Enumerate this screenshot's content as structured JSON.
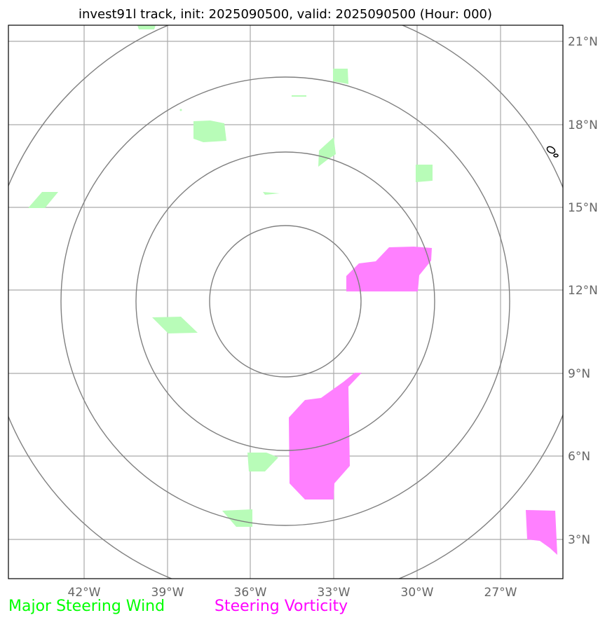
{
  "title": "invest91l track, init: 2025090500, valid: 2025090500 (Hour: 000)",
  "chart_data": {
    "type": "map",
    "title": "invest91l track, init: 2025090500, valid: 2025090500 (Hour: 000)",
    "lon_ticks": [
      "42°W",
      "39°W",
      "36°W",
      "33°W",
      "30°W",
      "27°W"
    ],
    "lat_ticks": [
      "21°N",
      "18°N",
      "15°N",
      "12°N",
      "9°N",
      "6°N",
      "3°N"
    ],
    "lon_range": [
      -44.7,
      -24.7
    ],
    "lat_range": [
      1.6,
      21.6
    ],
    "grid": true,
    "range_rings_center": {
      "lon": -34.8,
      "lat": 11.6
    },
    "legend": [
      {
        "label": "Major Steering Wind",
        "color": "#00ff00"
      },
      {
        "label": "Steering Vorticity",
        "color": "#ff00ff"
      }
    ]
  },
  "colors": {
    "wind_fill": "#b8fcb8",
    "vorticity_fill": "#ff80ff",
    "grid": "#aaaaaa",
    "rings": "#808080"
  }
}
